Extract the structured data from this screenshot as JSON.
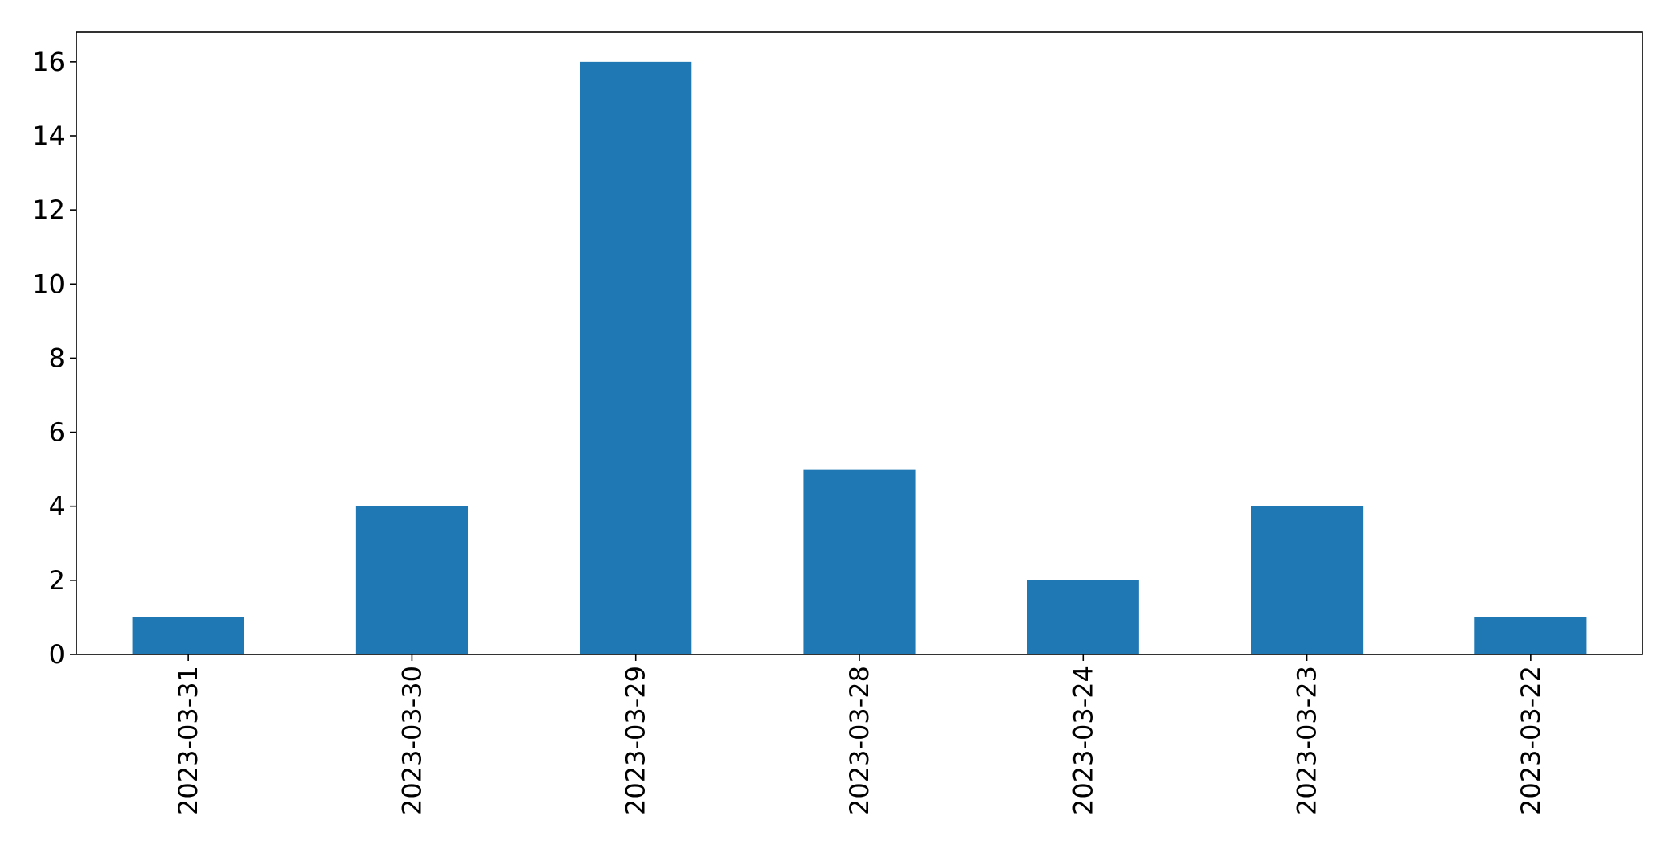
{
  "chart_data": {
    "type": "bar",
    "title": "",
    "xlabel": "",
    "ylabel": "",
    "categories": [
      "2023-03-31",
      "2023-03-30",
      "2023-03-29",
      "2023-03-28",
      "2023-03-24",
      "2023-03-23",
      "2023-03-22"
    ],
    "values": [
      1,
      4,
      16,
      5,
      2,
      4,
      1
    ],
    "ylim": [
      0,
      16.8
    ],
    "yticks": [
      0,
      2,
      4,
      6,
      8,
      10,
      12,
      14,
      16
    ],
    "grid": false,
    "legend": "none",
    "bar_color": "#1f77b4"
  }
}
